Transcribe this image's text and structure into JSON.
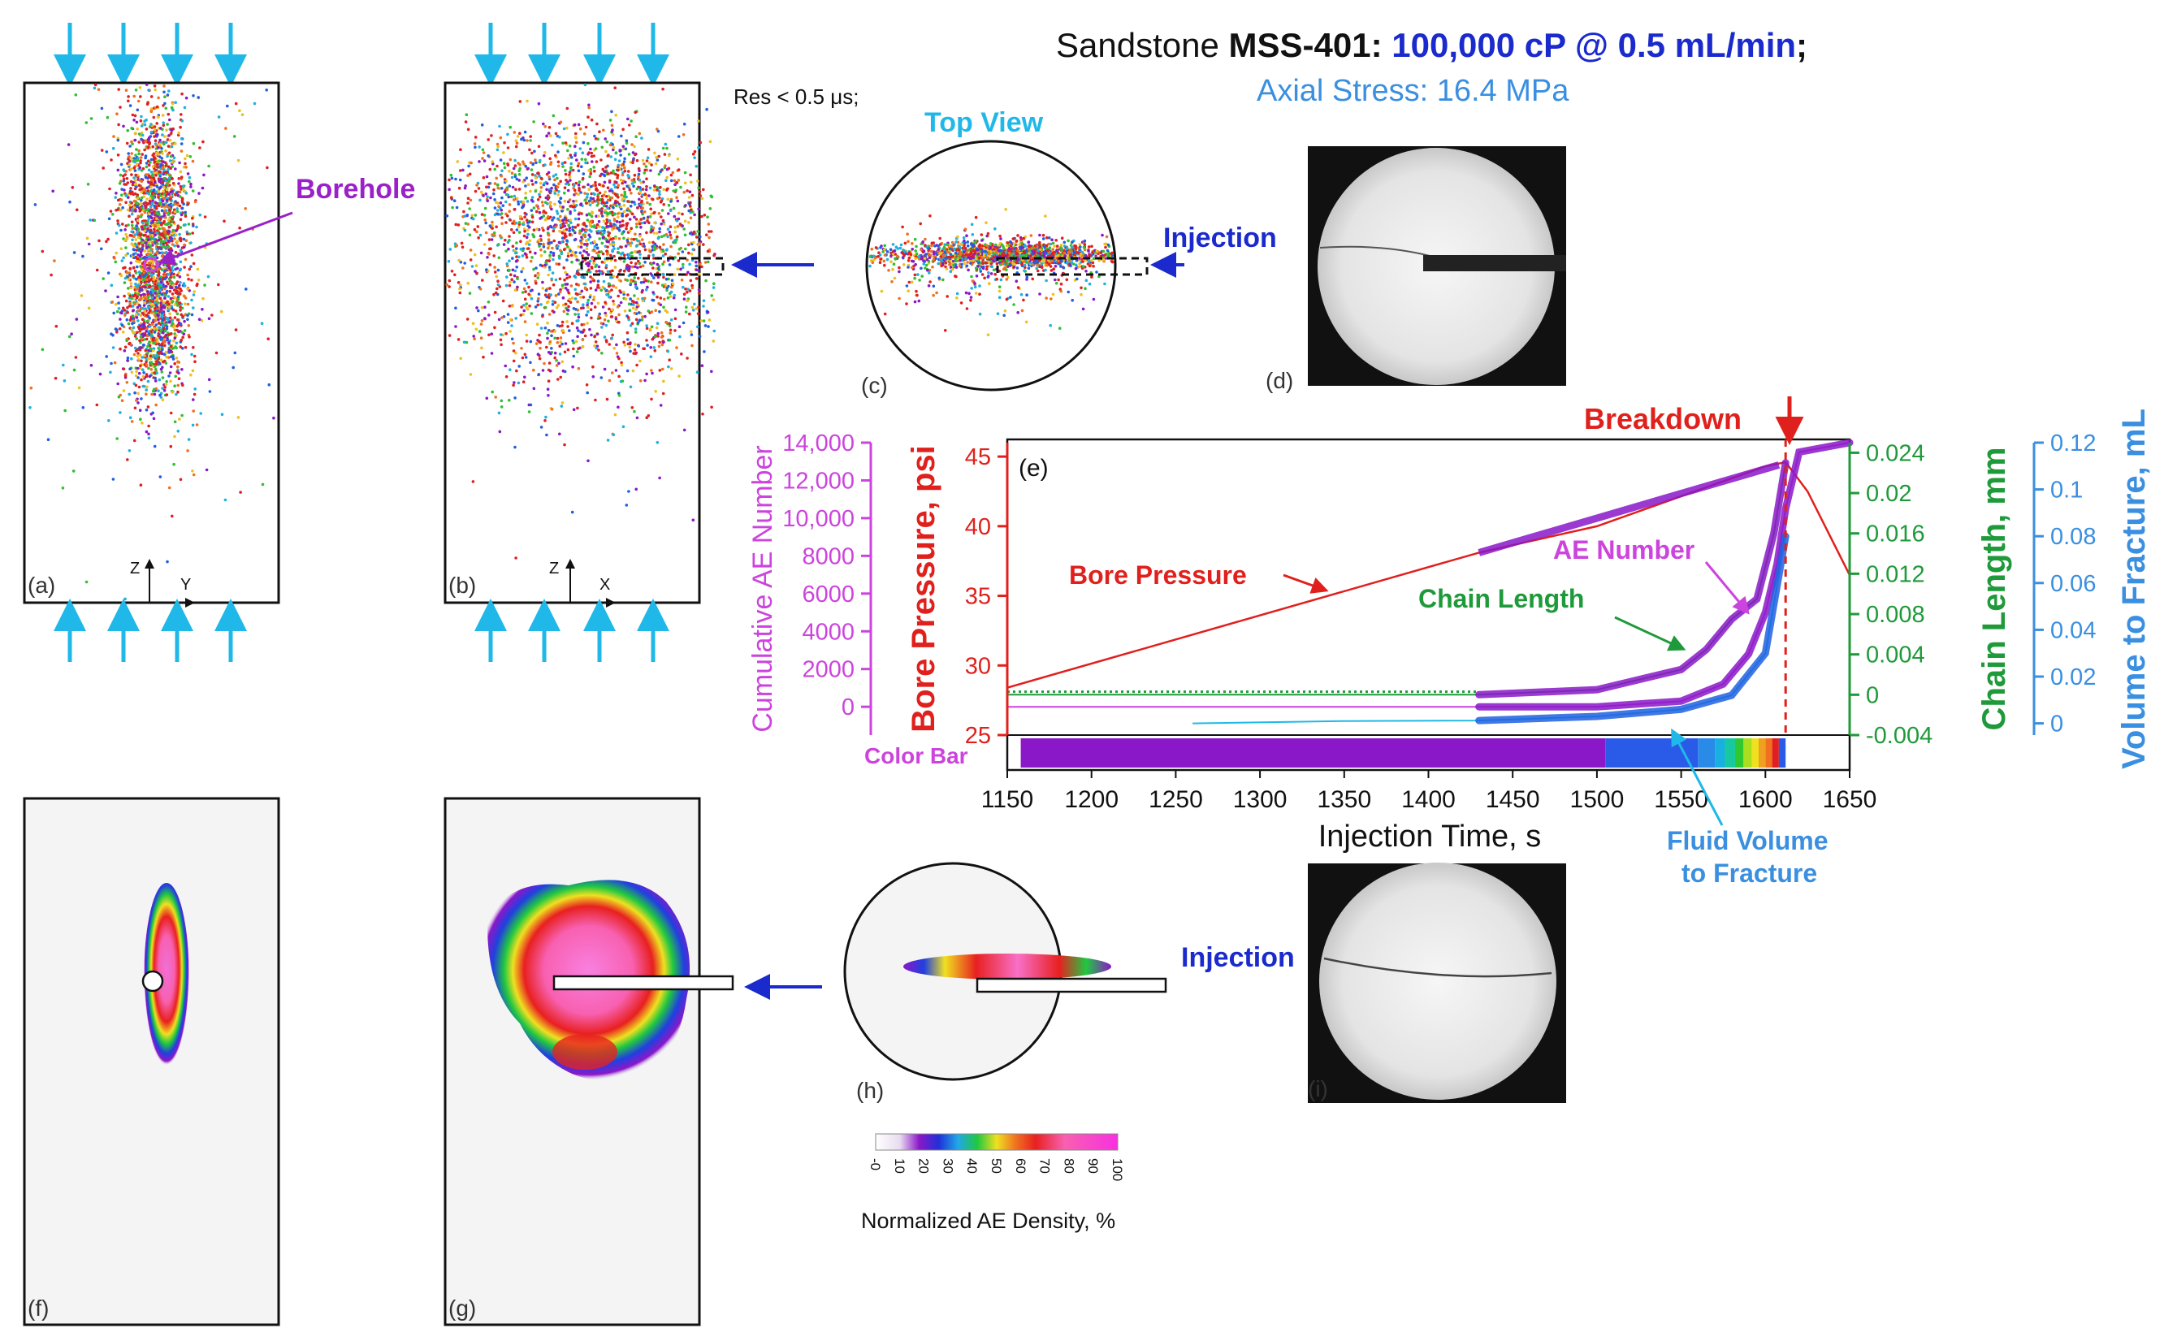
{
  "header": {
    "title_prefix": "Sandstone ",
    "sample_id": "MSS-401:",
    "injection": "100,000 cP @ 0.5 mL/min",
    "title_suffix": ";",
    "axial_stress": "Axial Stress: 16.4 MPa",
    "resolution": "Res < 0.5 μs;"
  },
  "colors": {
    "title_blue": "#1a2acc",
    "stress_blue": "#3a8fe0",
    "arrow_cyan": "#1fb8e8",
    "pressure_red": "#e0201c",
    "ae_magenta": "#cc44dd",
    "chain_green": "#1f9a3a",
    "volume_blue": "#3a8fe0",
    "breakdown_red": "#e0201c",
    "borehole_purple": "#9a20c8",
    "top_view_cyan": "#1fb8e8"
  },
  "panels": {
    "a": {
      "label": "(a)",
      "axis_v": "Z",
      "axis_h": "Y",
      "borehole": "Borehole"
    },
    "b": {
      "label": "(b)",
      "axis_v": "Z",
      "axis_h": "X"
    },
    "c": {
      "label": "(c)",
      "title": "Top View",
      "injection": "Injection"
    },
    "d": {
      "label": "(d)"
    },
    "f": {
      "label": "(f)"
    },
    "g": {
      "label": "(g)"
    },
    "h": {
      "label": "(h)",
      "injection": "Injection"
    },
    "i": {
      "label": "(i)"
    }
  },
  "colorbar": {
    "ticks": [
      "-0",
      "10",
      "20",
      "30",
      "40",
      "50",
      "60",
      "70",
      "80",
      "90",
      "100"
    ],
    "label": "Normalized AE Density, %"
  },
  "chart_data": {
    "type": "line",
    "panel_label": "(e)",
    "title": "Breakdown",
    "xlabel": "Injection Time, s",
    "xlim": [
      1150,
      1650
    ],
    "x_ticks": [
      1150,
      1200,
      1250,
      1300,
      1350,
      1400,
      1450,
      1500,
      1550,
      1600,
      1650
    ],
    "breakdown_time": 1612,
    "color_bar_label": "Color Bar",
    "axes": {
      "ae": {
        "label": "Cumulative AE Number",
        "range": [
          -1500,
          14000
        ],
        "ticks": [
          "0",
          "2000",
          "4000",
          "6000",
          "8000",
          "10,000",
          "12,000",
          "14,000"
        ],
        "tick_values": [
          0,
          2000,
          4000,
          6000,
          8000,
          10000,
          12000,
          14000
        ]
      },
      "pressure": {
        "label": "Bore Pressure, psi",
        "range": [
          25,
          46
        ],
        "ticks": [
          25,
          30,
          35,
          40,
          45
        ]
      },
      "chain": {
        "label": "Chain Length, mm",
        "range": [
          -0.004,
          0.025
        ],
        "ticks": [
          "-0.004",
          "0",
          "0.004",
          "0.008",
          "0.012",
          "0.016",
          "0.02",
          "0.024"
        ],
        "tick_values": [
          -0.004,
          0,
          0.004,
          0.008,
          0.012,
          0.016,
          0.02,
          0.024
        ]
      },
      "volume": {
        "label": "Volume to Fracture, mL",
        "range": [
          -0.005,
          0.12
        ],
        "ticks": [
          "0",
          "0.02",
          "0.04",
          "0.06",
          "0.08",
          "0.1",
          "0.12"
        ],
        "tick_values": [
          0,
          0.02,
          0.04,
          0.06,
          0.08,
          0.1,
          0.12
        ]
      }
    },
    "series": [
      {
        "name": "Bore Pressure",
        "axis": "pressure",
        "x": [
          1150,
          1430,
          1500,
          1600,
          1612,
          1625,
          1650
        ],
        "y": [
          28.4,
          38.1,
          40.0,
          44.3,
          44.6,
          42.5,
          36.5
        ]
      },
      {
        "name": "AE Number",
        "axis": "ae",
        "x": [
          1150,
          1430,
          1500,
          1550,
          1575,
          1590,
          1600,
          1607,
          1612,
          1620,
          1650
        ],
        "y": [
          0,
          0,
          0,
          300,
          1200,
          2800,
          5000,
          7600,
          10500,
          13500,
          14000
        ]
      },
      {
        "name": "Chain Length",
        "axis": "chain",
        "x": [
          1150,
          1430,
          1500,
          1550,
          1565,
          1580,
          1595,
          1605,
          1612
        ],
        "y": [
          0.0,
          0.0,
          0.0005,
          0.0025,
          0.0045,
          0.0075,
          0.0095,
          0.016,
          0.023
        ]
      },
      {
        "name": "Fluid Volume to Fracture",
        "axis": "volume",
        "x": [
          1260,
          1350,
          1430,
          1500,
          1550,
          1580,
          1600,
          1612
        ],
        "y": [
          0.0,
          0.001,
          0.0012,
          0.003,
          0.006,
          0.012,
          0.03,
          0.08
        ]
      }
    ],
    "annotations": {
      "bore_pressure": "Bore Pressure",
      "ae_number": "AE Number",
      "chain_length": "Chain Length",
      "fluid_volume_1": "Fluid Volume",
      "fluid_volume_2": "to Fracture"
    },
    "color_bar_segments": [
      {
        "x0": 1158,
        "x1": 1505,
        "color": "#8a18c8"
      },
      {
        "x0": 1505,
        "x1": 1560,
        "color": "#2a5ae8"
      },
      {
        "x0": 1560,
        "x1": 1570,
        "color": "#2a8ae8"
      },
      {
        "x0": 1570,
        "x1": 1576,
        "color": "#18b0e0"
      },
      {
        "x0": 1576,
        "x1": 1582,
        "color": "#18c8a0"
      },
      {
        "x0": 1582,
        "x1": 1587,
        "color": "#30c830"
      },
      {
        "x0": 1587,
        "x1": 1592,
        "color": "#a8e020"
      },
      {
        "x0": 1592,
        "x1": 1596,
        "color": "#f0e020"
      },
      {
        "x0": 1596,
        "x1": 1600,
        "color": "#f0a020"
      },
      {
        "x0": 1600,
        "x1": 1604,
        "color": "#f07020"
      },
      {
        "x0": 1604,
        "x1": 1608,
        "color": "#e02020"
      },
      {
        "x0": 1608,
        "x1": 1612,
        "color": "#2a5ae8"
      }
    ]
  }
}
